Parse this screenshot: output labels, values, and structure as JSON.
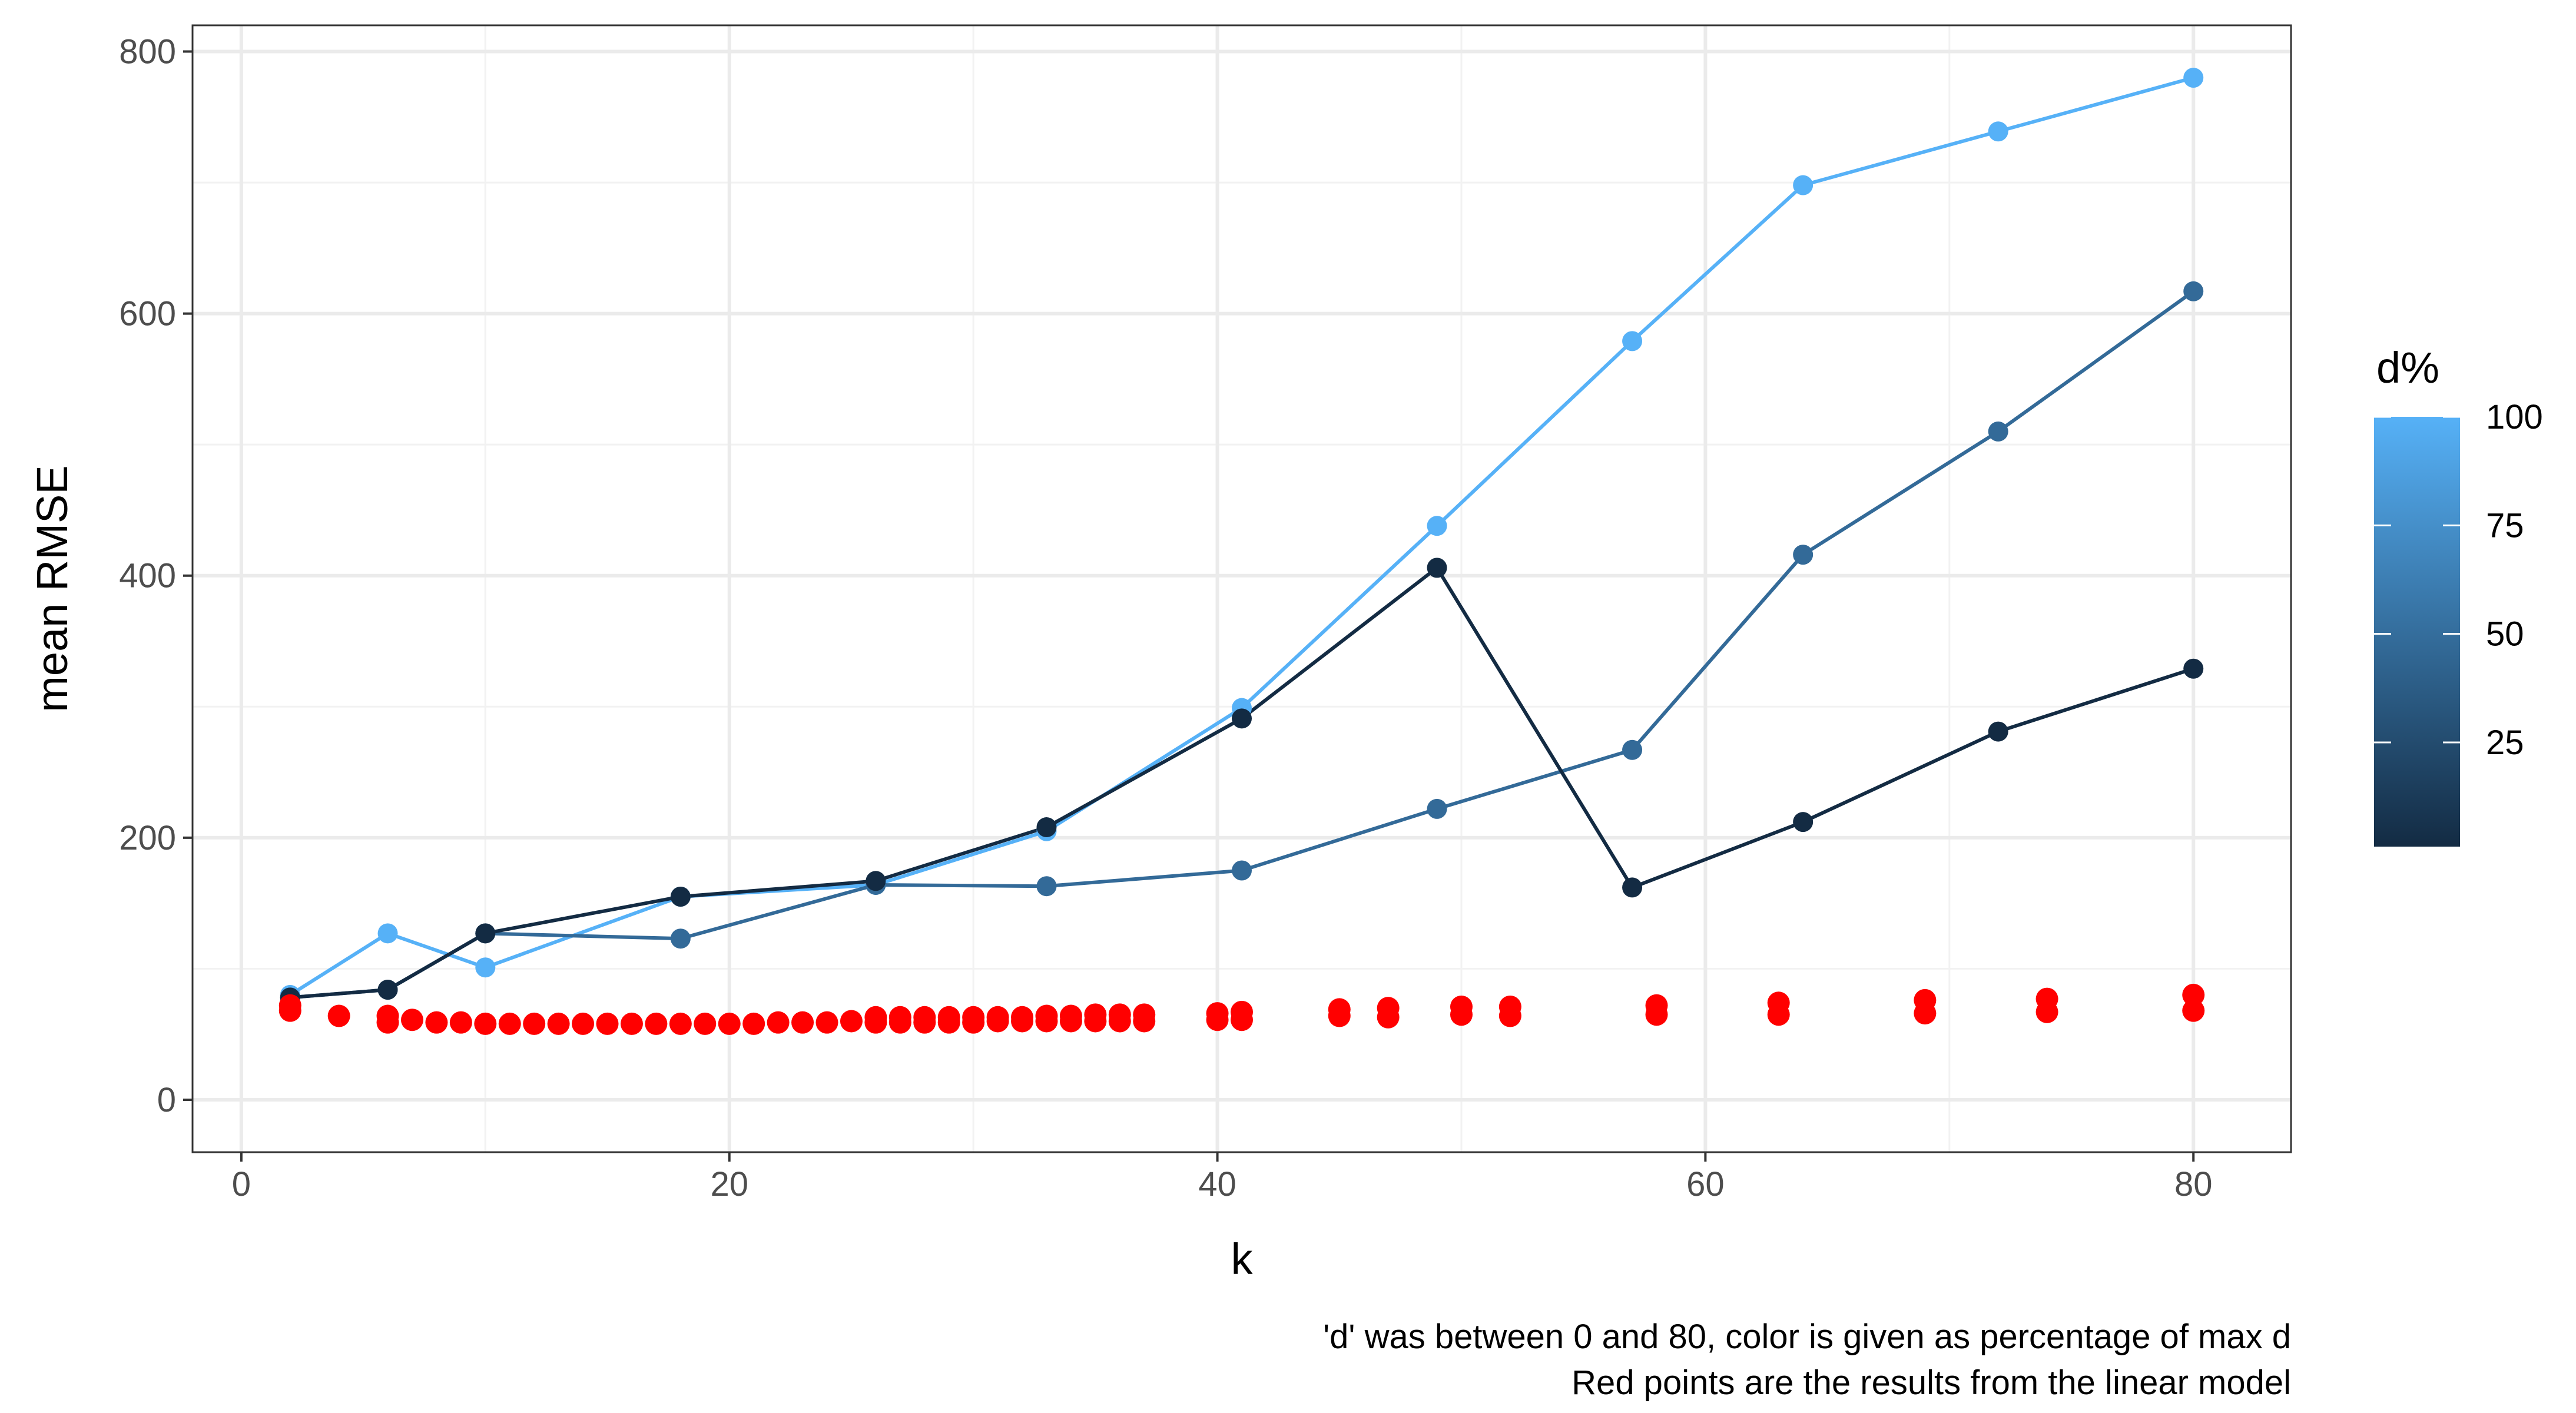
{
  "chart_data": {
    "type": "line",
    "xlabel": "k",
    "ylabel": "mean RMSE",
    "xlim": [
      -2,
      84
    ],
    "ylim": [
      -40,
      820
    ],
    "xticks": [
      0,
      20,
      40,
      60,
      80
    ],
    "xtick_labels": [
      "0",
      "20",
      "40",
      "60",
      "80"
    ],
    "yticks": [
      0,
      200,
      400,
      600,
      800
    ],
    "ytick_labels": [
      "0",
      "200",
      "400",
      "600",
      "800"
    ],
    "grid": true,
    "legend": {
      "title": "d%",
      "type": "colorbar",
      "placement": "right",
      "ticks": [
        25,
        50,
        75,
        100
      ],
      "tick_labels": [
        "25",
        "50",
        "75",
        "100"
      ],
      "range": [
        1,
        100
      ],
      "low_color": "#132B43",
      "high_color": "#56B1F7"
    },
    "caption": [
      "'d' was between 0 and 80, color is given as percentage of max d",
      "Red points are the results from the linear model"
    ],
    "series": [
      {
        "color": "#56B1F7",
        "x": [
          2,
          6,
          10,
          18,
          26,
          33,
          41,
          49,
          57,
          64,
          72,
          80
        ],
        "y": [
          80,
          127,
          101,
          155,
          164,
          205,
          299,
          438,
          579,
          698,
          739,
          780
        ]
      },
      {
        "color": "#336A98",
        "x": [
          2,
          6,
          10,
          18,
          26,
          33,
          41,
          49,
          57,
          64,
          72,
          80
        ],
        "y": [
          78,
          84,
          127,
          123,
          164,
          163,
          175,
          222,
          267,
          416,
          510,
          617
        ]
      },
      {
        "color": "#132B43",
        "x": [
          2,
          6,
          10,
          18,
          26,
          33,
          41,
          49,
          57,
          64,
          72,
          80
        ],
        "y": [
          78,
          84,
          127,
          155,
          167,
          208,
          291,
          406,
          162,
          212,
          281,
          329
        ]
      }
    ],
    "linear_model_points": {
      "color": "#FF0000",
      "x": [
        2,
        2,
        4,
        6,
        6,
        7,
        8,
        9,
        10,
        11,
        12,
        13,
        14,
        15,
        16,
        17,
        18,
        19,
        20,
        21,
        22,
        23,
        24,
        25,
        26,
        26,
        27,
        27,
        28,
        28,
        29,
        29,
        30,
        30,
        31,
        31,
        32,
        32,
        33,
        33,
        34,
        34,
        35,
        35,
        36,
        36,
        37,
        37,
        40,
        40,
        41,
        41,
        45,
        45,
        47,
        47,
        50,
        50,
        52,
        52,
        58,
        58,
        63,
        63,
        69,
        69,
        74,
        74,
        80,
        80
      ],
      "y": [
        72,
        68,
        64,
        64,
        59,
        61,
        59,
        59,
        58,
        58,
        58,
        58,
        58,
        58,
        58,
        58,
        58,
        58,
        58,
        58,
        59,
        59,
        59,
        60,
        63,
        59,
        63,
        59,
        63,
        59,
        63,
        59,
        63,
        59,
        63,
        60,
        63,
        60,
        64,
        60,
        64,
        60,
        65,
        60,
        65,
        60,
        65,
        60,
        66,
        61,
        67,
        61,
        69,
        64,
        70,
        63,
        71,
        65,
        71,
        64,
        72,
        65,
        74,
        65,
        76,
        66,
        77,
        67,
        80,
        68
      ]
    }
  }
}
